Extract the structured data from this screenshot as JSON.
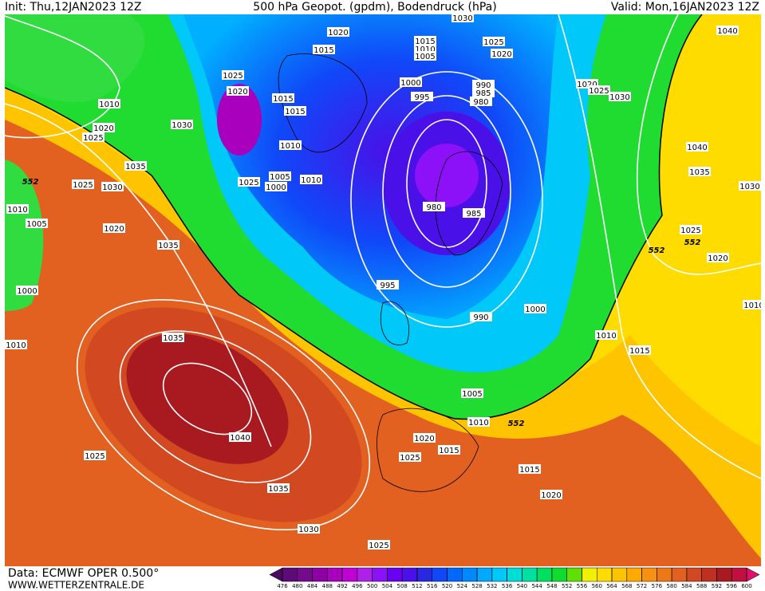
{
  "header": {
    "init": "Init: Thu,12JAN2023 12Z",
    "title": "500 hPa Geopot. (gpdm), Bodendruck (hPa)",
    "valid": "Valid: Mon,16JAN2023 12Z"
  },
  "footer": {
    "source": "Data: ECMWF OPER 0.500°",
    "site": "WWW.WETTERZENTRALE.DE"
  },
  "colorbar": {
    "ticks": [
      476,
      480,
      484,
      488,
      492,
      496,
      500,
      504,
      508,
      512,
      516,
      520,
      524,
      528,
      532,
      536,
      540,
      544,
      548,
      552,
      556,
      560,
      564,
      568,
      572,
      576,
      580,
      584,
      588,
      592,
      596,
      600
    ],
    "colors": [
      "#4a0a60",
      "#5e0a78",
      "#760a8c",
      "#8e00a4",
      "#a800bc",
      "#c000d4",
      "#b020e8",
      "#8c10f8",
      "#6a00f0",
      "#4a10e8",
      "#2828e0",
      "#1048f8",
      "#0068ff",
      "#0088ff",
      "#00a8ff",
      "#00c8f8",
      "#00dcd8",
      "#00e0a0",
      "#00e060",
      "#10dc30",
      "#60e000",
      "#f0f000",
      "#ffdc00",
      "#ffc400",
      "#ffaa00",
      "#f89010",
      "#ee7818",
      "#e26020",
      "#d24820",
      "#c03020",
      "#a81a20",
      "#c01040",
      "#e0106a"
    ]
  },
  "isobar_labels": [
    1020,
    1015,
    1025,
    1020,
    1015,
    1015,
    1010,
    1030,
    1020,
    1025,
    1035,
    1025,
    1030,
    1010,
    1005,
    1020,
    1035,
    1000,
    1010,
    1035,
    1040,
    1025,
    1035,
    1030,
    1025,
    1010,
    1005,
    1000,
    1025,
    1010,
    1030,
    1015,
    1010,
    1005,
    1000,
    995,
    990,
    985,
    980,
    980,
    985,
    995,
    990,
    1000,
    1005,
    1010,
    1020,
    1025,
    1015,
    1015,
    1020,
    1025,
    1020,
    1020,
    1025,
    1030,
    1040,
    1040,
    1035,
    1030,
    1025,
    1020,
    1010,
    1015,
    1010
  ],
  "contour_552_labels": [
    552,
    552,
    552,
    552
  ]
}
